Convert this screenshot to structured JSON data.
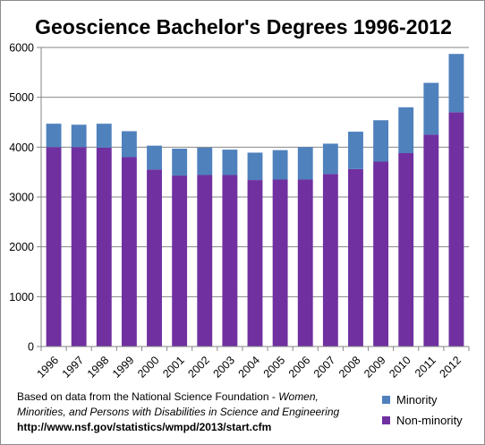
{
  "chart_data": {
    "type": "bar",
    "stacked": true,
    "title": "Geoscience Bachelor's Degrees 1996-2012",
    "categories": [
      "1996",
      "1997",
      "1998",
      "1999",
      "2000",
      "2001",
      "2002",
      "2003",
      "2004",
      "2005",
      "2006",
      "2007",
      "2008",
      "2009",
      "2010",
      "2011",
      "2012"
    ],
    "series": [
      {
        "name": "Non-minority",
        "color": "#7030a0",
        "values": [
          4000,
          4000,
          3990,
          3800,
          3550,
          3430,
          3440,
          3440,
          3340,
          3350,
          3350,
          3460,
          3560,
          3710,
          3880,
          4250,
          4700
        ]
      },
      {
        "name": "Minority",
        "color": "#4f81bd",
        "values": [
          470,
          450,
          480,
          520,
          480,
          540,
          550,
          510,
          550,
          590,
          650,
          610,
          750,
          830,
          920,
          1040,
          1170
        ]
      }
    ],
    "ylim": [
      0,
      6000
    ],
    "yticks": [
      "0",
      "1000",
      "2000",
      "3000",
      "4000",
      "5000",
      "6000"
    ],
    "grid": true,
    "legend_position": "bottom-right",
    "source": {
      "line1_prefix": "Based on data from the National Science Foundation - ",
      "line1_italic": "Women,",
      "line2_italic": "Minorities, and Persons with Disabilities in Science and Engineering",
      "line3": "http://www.nsf.gov/statistics/wmpd/2013/start.cfm"
    }
  }
}
